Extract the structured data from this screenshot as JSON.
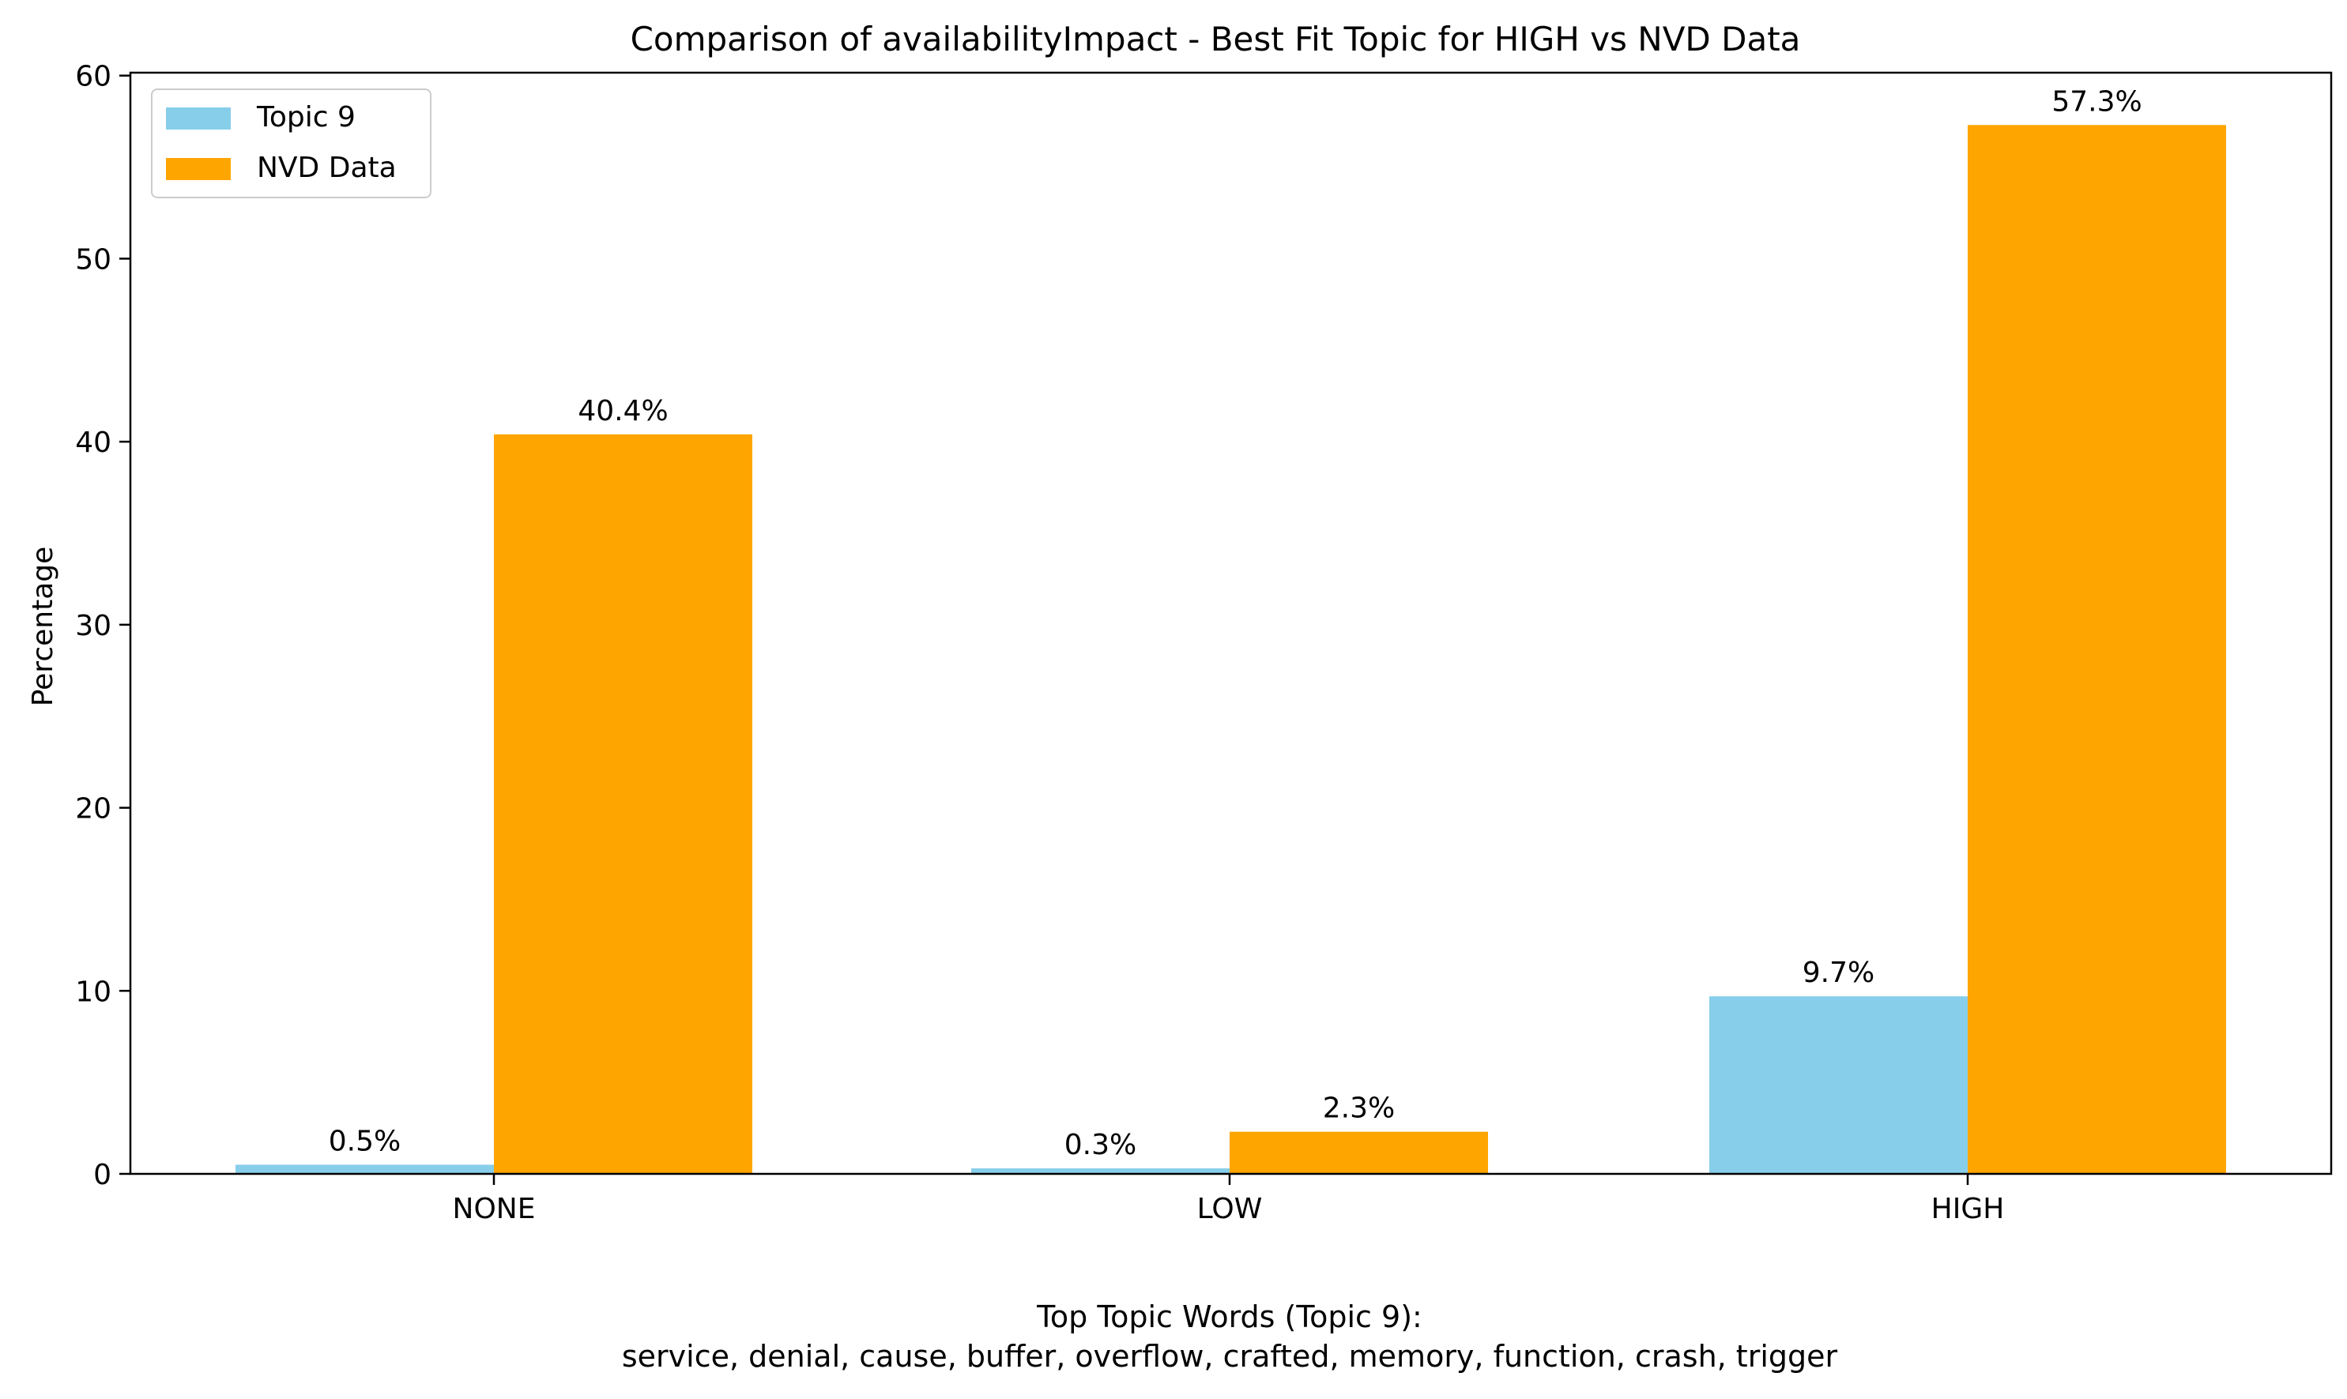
{
  "chart_data": {
    "type": "bar",
    "title": "Comparison of availabilityImpact - Best Fit Topic for HIGH vs NVD Data",
    "xlabel_lines": [
      "Top Topic Words (Topic 9):",
      "service,  denial,  cause,  buffer,  overflow,  crafted,  memory,  function,  crash,  trigger"
    ],
    "ylabel": "Percentage",
    "categories": [
      "NONE",
      "LOW",
      "HIGH"
    ],
    "series": [
      {
        "name": "Topic 9",
        "color": "#87CEEB",
        "values": [
          0.5,
          0.3,
          9.7
        ],
        "labels": [
          "0.5%",
          "0.3%",
          "9.7%"
        ]
      },
      {
        "name": "NVD Data",
        "color": "#FFA500",
        "values": [
          40.4,
          2.3,
          57.3
        ],
        "labels": [
          "40.4%",
          "2.3%",
          "57.3%"
        ]
      }
    ],
    "ylim": [
      0,
      60.16
    ],
    "yticks": [
      0,
      10,
      20,
      30,
      40,
      50,
      60
    ],
    "grid": false,
    "legend_position": "top-left"
  }
}
